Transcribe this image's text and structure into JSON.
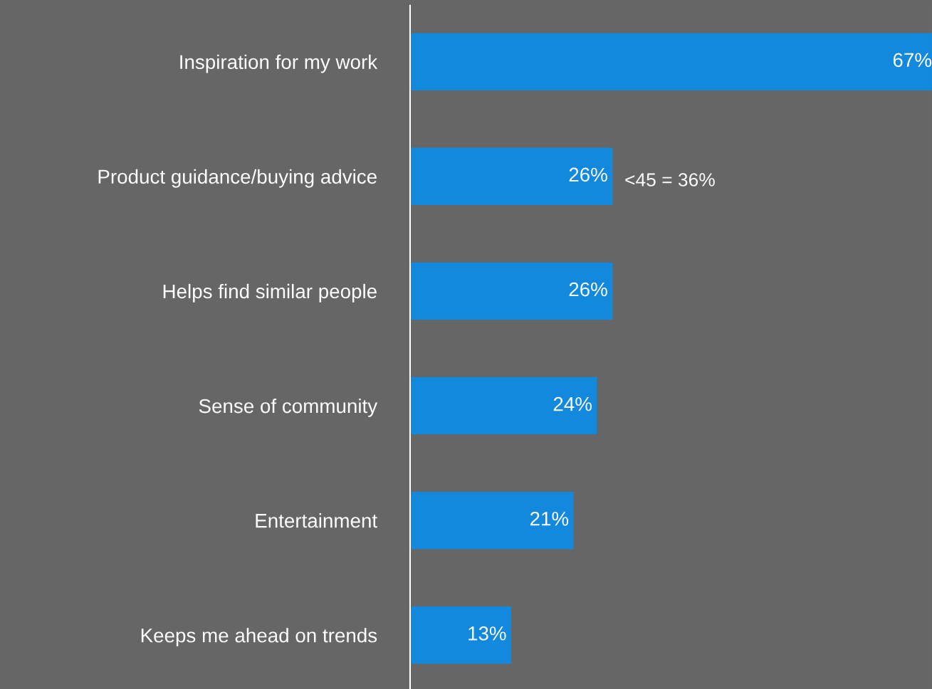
{
  "chart_data": {
    "type": "bar",
    "orientation": "horizontal",
    "categories": [
      "Inspiration for my work",
      "Product guidance/buying advice",
      "Helps find similar people",
      "Sense of community",
      "Entertainment",
      "Keeps me ahead on trends"
    ],
    "values": [
      67,
      26,
      26,
      24,
      21,
      13
    ],
    "color": "#1289dc",
    "value_labels": [
      "67%",
      "26%",
      "26%",
      "24%",
      "21%",
      "13%"
    ],
    "grid": false,
    "legend": false,
    "tick_labels": "y",
    "annotations": [
      {
        "text": "<45 = 36%",
        "x": 26,
        "y": "Product guidance/buying advice"
      }
    ]
  }
}
